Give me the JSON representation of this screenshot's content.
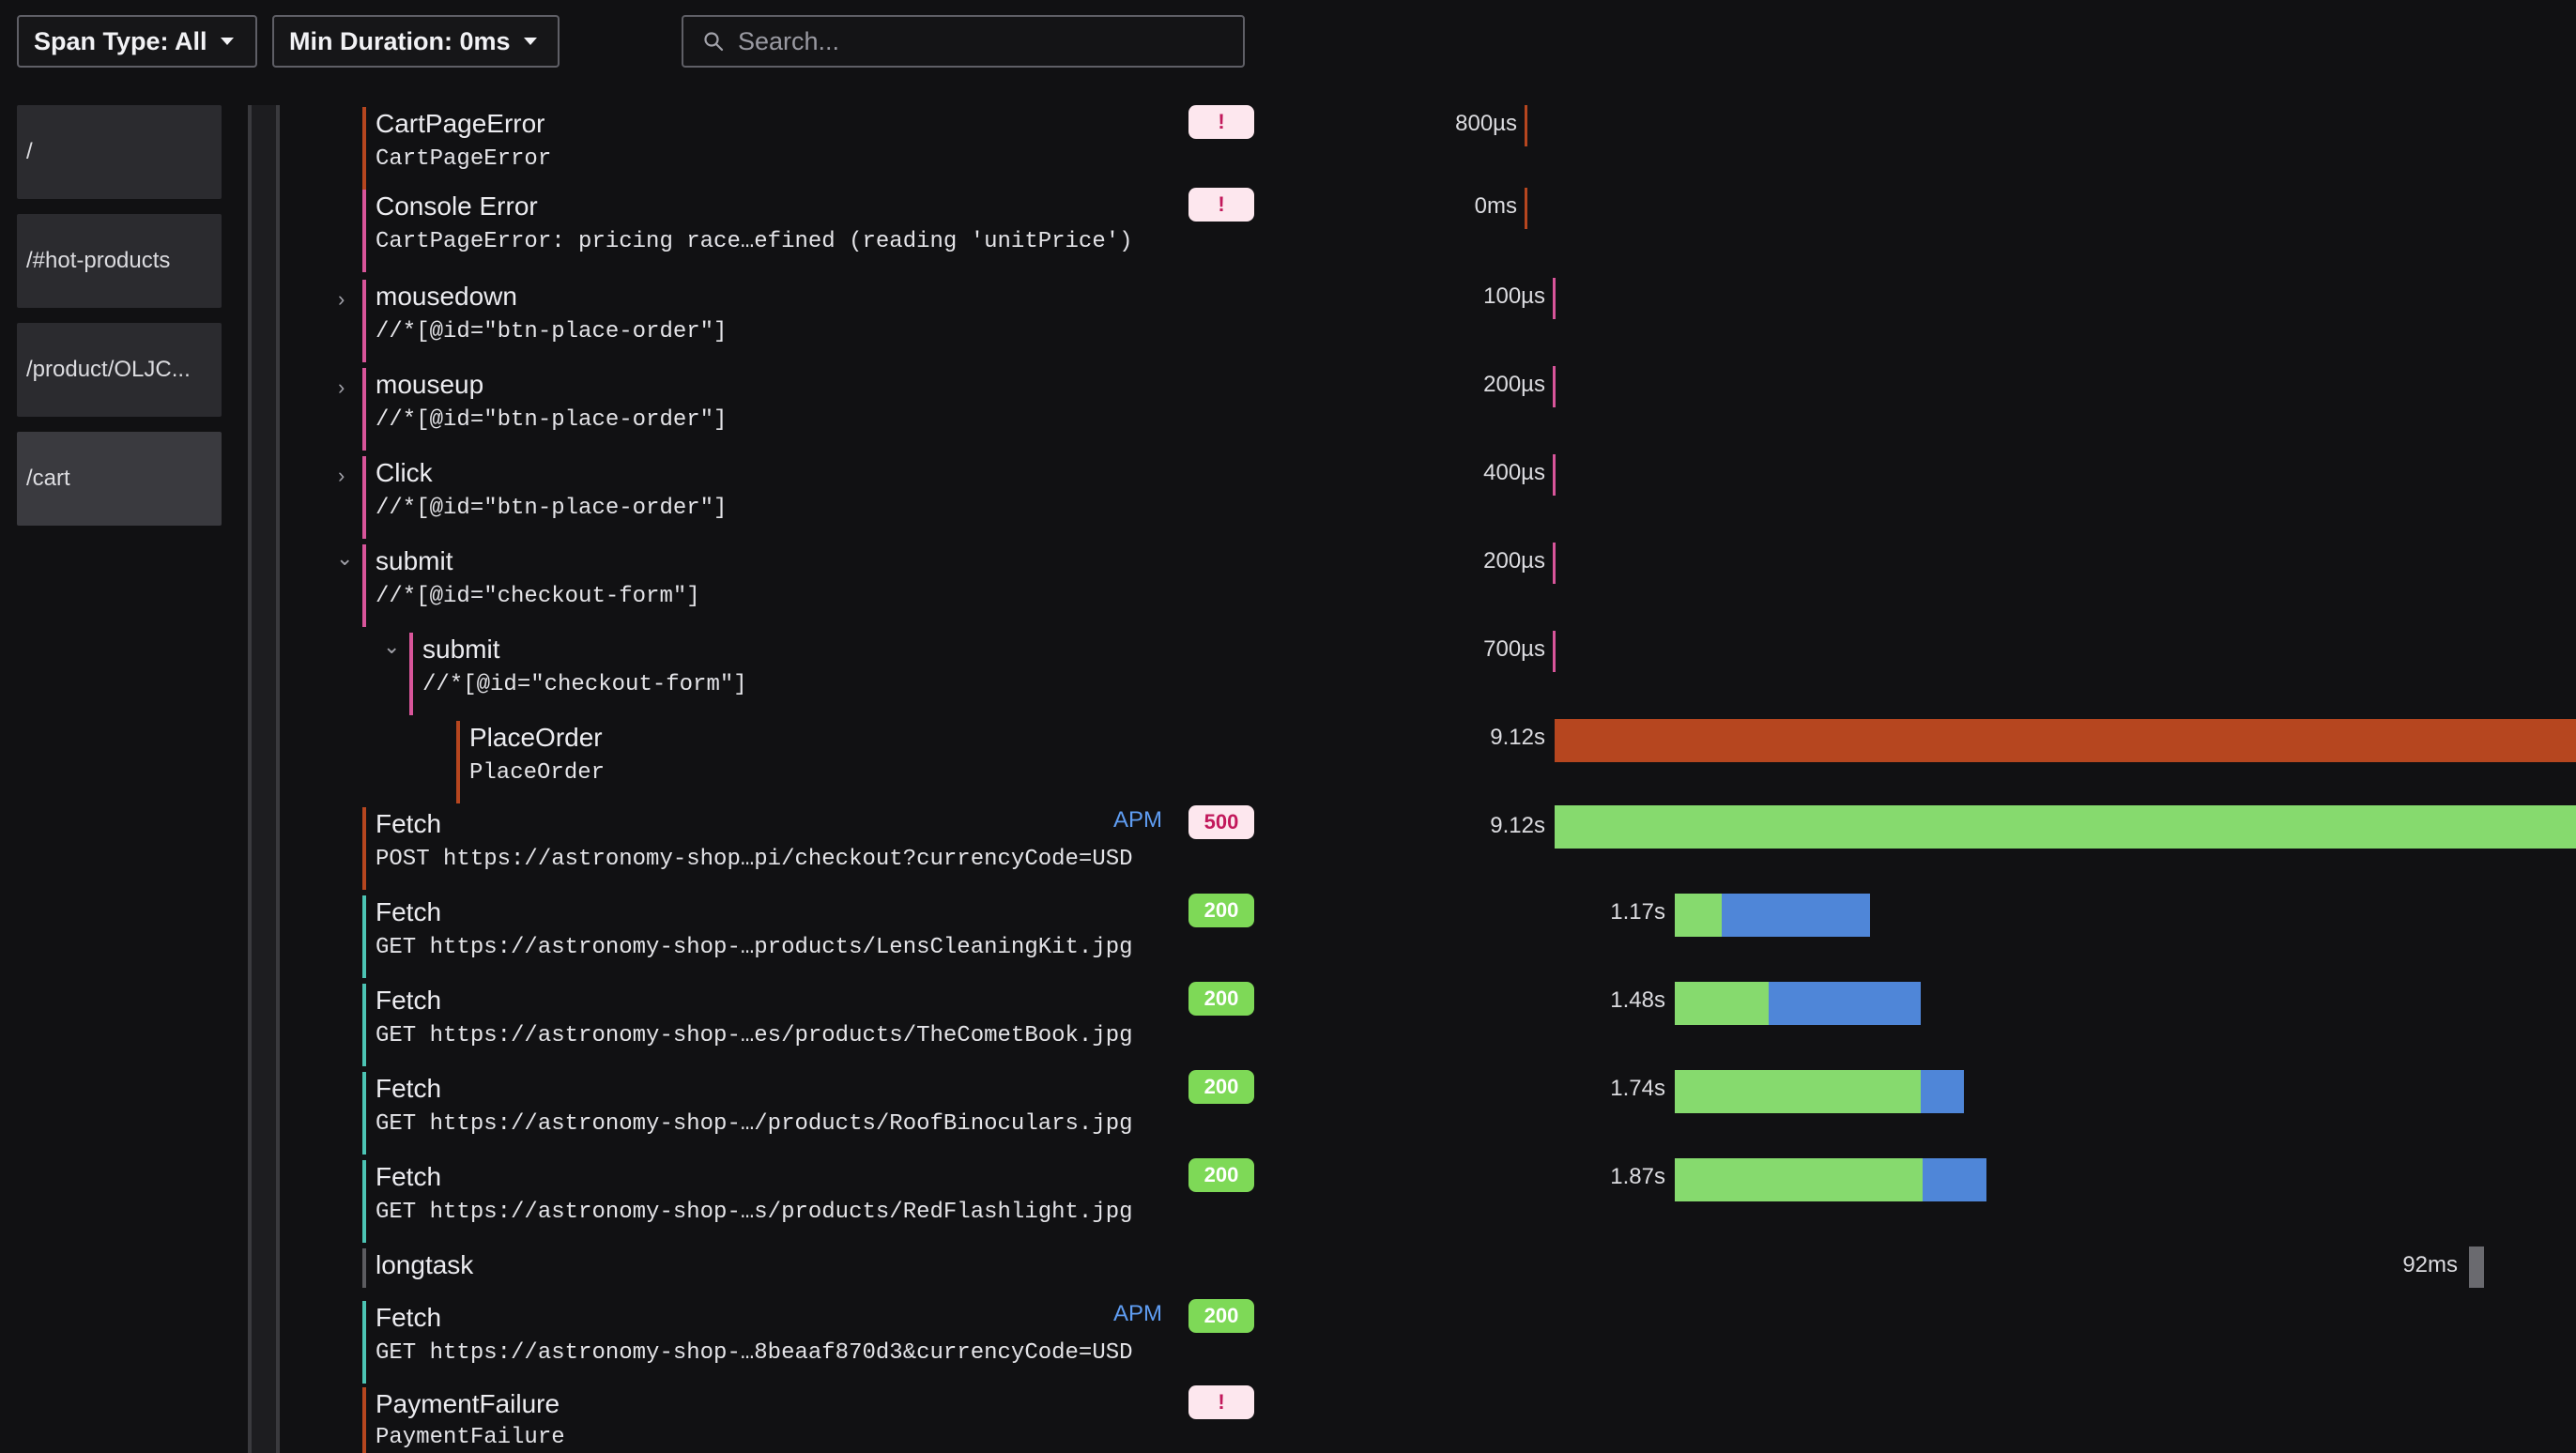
{
  "toolbar": {
    "span_type_label": "Span Type: All",
    "min_duration_label": "Min Duration: 0ms",
    "search_placeholder": "Search..."
  },
  "pages": [
    {
      "label": "/"
    },
    {
      "label": "/#hot-products"
    },
    {
      "label": "/product/OLJC..."
    },
    {
      "label": "/cart",
      "active": true
    }
  ],
  "colors": {
    "error": "#b6461f",
    "interaction": "#d8559a",
    "success": "#4cc4b4",
    "network_green": "#86da6e",
    "network_blue": "#4f86d8",
    "neutral": "#5c5c60"
  },
  "spans": [
    {
      "name": "CartPageError",
      "detail": "CartPageError",
      "duration": "800µs",
      "badge": "!",
      "badge_kind": "bad"
    },
    {
      "name": "Console Error",
      "detail": "CartPageError: pricing race…efined (reading 'unitPrice')",
      "duration": "0ms",
      "badge": "!",
      "badge_kind": "bad"
    },
    {
      "name": "mousedown",
      "detail": "//*[@id=\"btn-place-order\"]",
      "duration": "100µs"
    },
    {
      "name": "mouseup",
      "detail": "//*[@id=\"btn-place-order\"]",
      "duration": "200µs"
    },
    {
      "name": "Click",
      "detail": "//*[@id=\"btn-place-order\"]",
      "duration": "400µs"
    },
    {
      "name": "submit",
      "detail": "//*[@id=\"checkout-form\"]",
      "duration": "200µs"
    },
    {
      "name": "submit",
      "detail": "//*[@id=\"checkout-form\"]",
      "duration": "700µs"
    },
    {
      "name": "PlaceOrder",
      "detail": "PlaceOrder",
      "duration": "9.12s"
    },
    {
      "name": "Fetch",
      "detail": "POST https://astronomy-shop…pi/checkout?currencyCode=USD",
      "duration": "9.12s",
      "apm": "APM",
      "badge": "500",
      "badge_kind": "bad"
    },
    {
      "name": "Fetch",
      "detail": "GET https://astronomy-shop-…products/LensCleaningKit.jpg",
      "duration": "1.17s",
      "badge": "200",
      "badge_kind": "ok"
    },
    {
      "name": "Fetch",
      "detail": "GET https://astronomy-shop-…es/products/TheCometBook.jpg",
      "duration": "1.48s",
      "badge": "200",
      "badge_kind": "ok"
    },
    {
      "name": "Fetch",
      "detail": "GET https://astronomy-shop-…/products/RoofBinoculars.jpg",
      "duration": "1.74s",
      "badge": "200",
      "badge_kind": "ok"
    },
    {
      "name": "Fetch",
      "detail": "GET https://astronomy-shop-…s/products/RedFlashlight.jpg",
      "duration": "1.87s",
      "badge": "200",
      "badge_kind": "ok"
    },
    {
      "name": "longtask",
      "detail": "",
      "duration": "92ms"
    },
    {
      "name": "Fetch",
      "detail": "GET https://astronomy-shop-…8beaaf870d3&currencyCode=USD",
      "duration": "",
      "apm": "APM",
      "badge": "200",
      "badge_kind": "ok"
    },
    {
      "name": "PaymentFailure",
      "detail": "PaymentFailure",
      "duration": "",
      "badge": "!",
      "badge_kind": "bad"
    }
  ]
}
